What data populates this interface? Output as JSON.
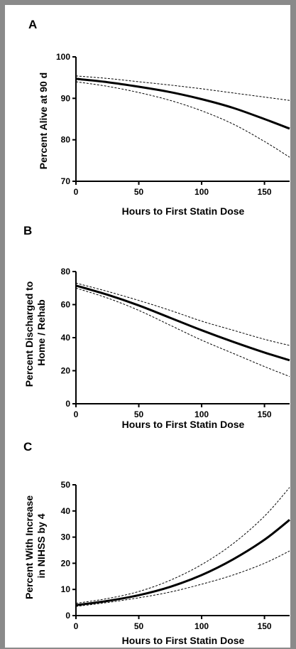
{
  "figure": {
    "panels": [
      {
        "letter": "A",
        "xlabel": "Hours to First Statin Dose",
        "ylabel_lines": [
          "Percent Alive at 90 d"
        ]
      },
      {
        "letter": "B",
        "xlabel": "Hours to First Statin Dose",
        "ylabel_lines": [
          "Percent Discharged to",
          "Home / Rehab"
        ]
      },
      {
        "letter": "C",
        "xlabel": "Hours to First Statin Dose",
        "ylabel_lines": [
          "Percent With Increase",
          "in NIHSS by 4"
        ]
      }
    ]
  },
  "chart_data": [
    {
      "type": "line",
      "xlim": [
        0,
        170
      ],
      "ylim": [
        70,
        100
      ],
      "xticks": [
        0,
        50,
        100,
        150
      ],
      "yticks": [
        70,
        80,
        90,
        100
      ],
      "x": [
        0,
        25,
        50,
        75,
        100,
        125,
        150,
        170
      ],
      "series": [
        {
          "role": "estimate",
          "style": "solid-thick",
          "values": [
            94.7,
            93.9,
            92.8,
            91.5,
            89.8,
            87.7,
            85.0,
            82.7
          ]
        },
        {
          "role": "upper-ci",
          "style": "dashed",
          "values": [
            95.4,
            94.8,
            94.0,
            93.2,
            92.3,
            91.3,
            90.3,
            89.5
          ]
        },
        {
          "role": "lower-ci",
          "style": "dashed",
          "values": [
            94.0,
            92.9,
            91.4,
            89.5,
            87.0,
            83.8,
            79.6,
            75.8
          ]
        }
      ]
    },
    {
      "type": "line",
      "xlim": [
        0,
        170
      ],
      "ylim": [
        0,
        80
      ],
      "xticks": [
        0,
        50,
        100,
        150
      ],
      "yticks": [
        0,
        20,
        40,
        60,
        80
      ],
      "x": [
        0,
        25,
        50,
        75,
        100,
        125,
        150,
        170
      ],
      "series": [
        {
          "role": "estimate",
          "style": "solid-thick",
          "values": [
            71.5,
            66.0,
            59.5,
            52.0,
            44.5,
            37.5,
            31.0,
            26.3
          ]
        },
        {
          "role": "upper-ci",
          "style": "dashed",
          "values": [
            73.0,
            68.0,
            62.5,
            56.5,
            50.0,
            44.5,
            39.0,
            35.3
          ]
        },
        {
          "role": "lower-ci",
          "style": "dashed",
          "values": [
            70.0,
            64.0,
            56.5,
            47.5,
            38.5,
            30.5,
            22.5,
            16.5
          ]
        }
      ]
    },
    {
      "type": "line",
      "xlim": [
        0,
        170
      ],
      "ylim": [
        0,
        50
      ],
      "xticks": [
        0,
        50,
        100,
        150
      ],
      "yticks": [
        0,
        10,
        20,
        30,
        40,
        50
      ],
      "x": [
        0,
        25,
        50,
        75,
        100,
        125,
        150,
        170
      ],
      "series": [
        {
          "role": "estimate",
          "style": "solid-thick",
          "values": [
            4.0,
            5.6,
            7.8,
            11.0,
            15.5,
            21.5,
            29.0,
            36.6
          ]
        },
        {
          "role": "upper-ci",
          "style": "dashed",
          "values": [
            4.7,
            6.5,
            9.2,
            13.5,
            19.5,
            27.5,
            38.0,
            49.0
          ]
        },
        {
          "role": "lower-ci",
          "style": "dashed",
          "values": [
            3.5,
            5.0,
            6.8,
            9.0,
            12.0,
            15.5,
            20.0,
            24.7
          ]
        }
      ]
    }
  ]
}
